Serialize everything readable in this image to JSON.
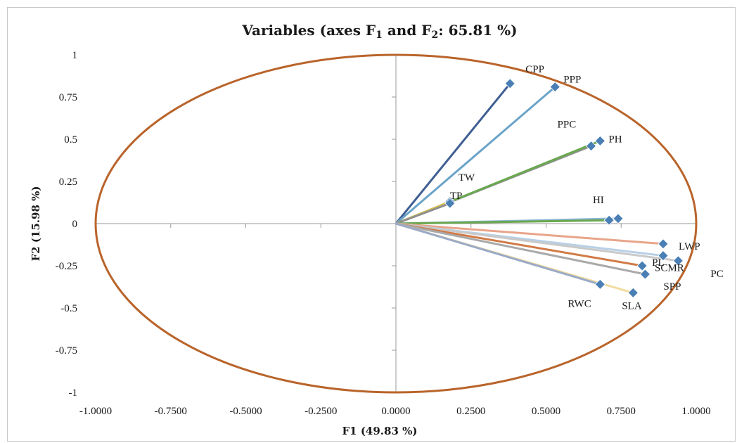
{
  "chart_data": {
    "type": "scatter",
    "subtype": "pca-correlation-circle",
    "title": "Variables (axes F",
    "title_parts": [
      "Variables (axes F",
      "1",
      " and F",
      "2",
      ": 65.81 %)"
    ],
    "xlabel": "F1 (49.83 %)",
    "ylabel": "F2 (15.98 %)",
    "xlim": [
      -1.0,
      1.0
    ],
    "ylim": [
      -1.0,
      1.0
    ],
    "x_ticks": [
      "-1.0000",
      "-0.7500",
      "-0.5000",
      "-0.2500",
      "0.0000",
      "0.2500",
      "0.5000",
      "0.7500",
      "1.0000"
    ],
    "y_ticks": [
      "1",
      "0.75",
      "0.5",
      "0.25",
      "0",
      "-0.25",
      "-0.5",
      "-0.75",
      "-1"
    ],
    "circle_color": "#b9642b",
    "marker_color": "#4a7fb5",
    "points": [
      {
        "label": "CPP",
        "x": 0.38,
        "y": 0.83,
        "color": "#3f5f93"
      },
      {
        "label": "PPP",
        "x": 0.53,
        "y": 0.81,
        "color": "#6aa3c8"
      },
      {
        "label": "PPC",
        "x": 0.65,
        "y": 0.46,
        "color": "#909090"
      },
      {
        "label": "PH",
        "x": 0.68,
        "y": 0.49,
        "color": "#6aa84f"
      },
      {
        "label": "TW",
        "x": 0.18,
        "y": 0.13,
        "color": "#d9c14a"
      },
      {
        "label": "TP",
        "x": 0.18,
        "y": 0.12,
        "color": "#909090"
      },
      {
        "label": "HI",
        "x": 0.74,
        "y": 0.03,
        "color": "#8ab5d6"
      },
      {
        "label": "",
        "x": 0.71,
        "y": 0.02,
        "color": "#6aa84f"
      },
      {
        "label": "LWP",
        "x": 0.89,
        "y": -0.12,
        "color": "#e8a58a"
      },
      {
        "label": "SCMR",
        "x": 0.89,
        "y": -0.19,
        "color": "#b7d0e6"
      },
      {
        "label": "PC",
        "x": 0.94,
        "y": -0.22,
        "color": "#c9c9c9"
      },
      {
        "label": "PL",
        "x": 0.82,
        "y": -0.25,
        "color": "#d07a45"
      },
      {
        "label": "SPP",
        "x": 0.83,
        "y": -0.3,
        "color": "#a9a9a9"
      },
      {
        "label": "SLA",
        "x": 0.79,
        "y": -0.41,
        "color": "#f2dca0"
      },
      {
        "label": "RWC",
        "x": 0.68,
        "y": -0.36,
        "color": "#9aaac7"
      }
    ]
  }
}
